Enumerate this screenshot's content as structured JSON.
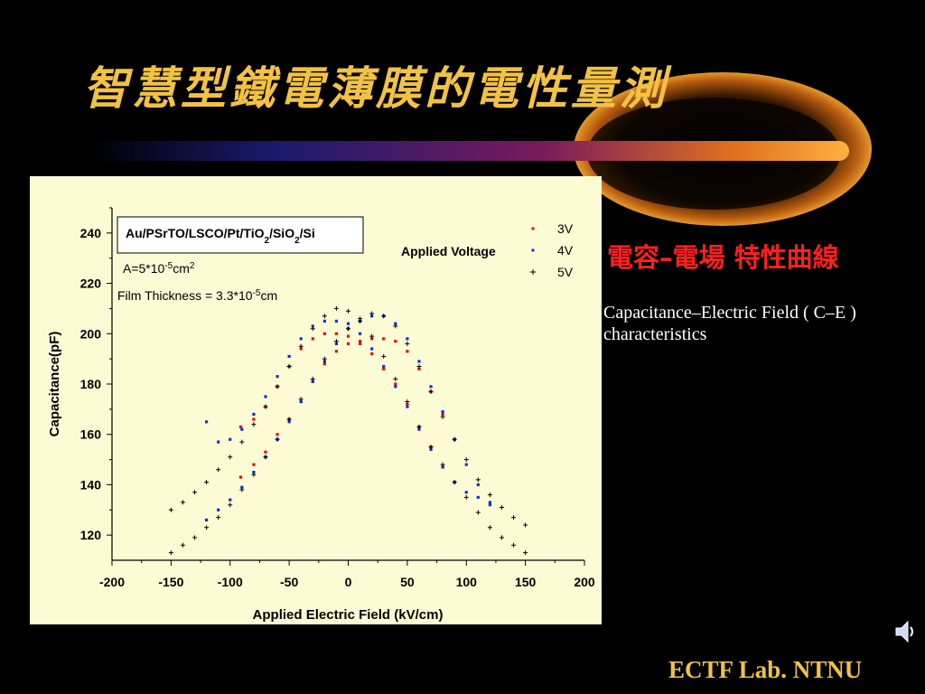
{
  "slide": {
    "title": "智慧型鐵電薄膜的電性量測",
    "subtitle_zh": "電容–電場 特性曲線",
    "subtitle_en_line1": "Capacitance–Electric Field ( C–E )",
    "subtitle_en_line2": "characteristics",
    "footer": "ECTF Lab. NTNU"
  },
  "colors": {
    "title": "#f2c244",
    "subtitle_zh": "#ff2020",
    "panel_bg": "#fdfbd4",
    "series_3v": "#e01010",
    "series_4v": "#1030e0",
    "series_5v": "#000000"
  },
  "chart_data": {
    "type": "scatter",
    "xlabel": "Applied Electric Field (kV/cm)",
    "ylabel": "Capacitance(pF)",
    "xlim": [
      -200,
      200
    ],
    "ylim": [
      110,
      250
    ],
    "x_ticks": [
      -200,
      -150,
      -100,
      -50,
      0,
      50,
      100,
      150,
      200
    ],
    "y_ticks": [
      120,
      140,
      160,
      180,
      200,
      220,
      240
    ],
    "grid": false,
    "legend_title": "Applied Voltage",
    "legend_position": "top-right",
    "annotations": {
      "sample": "Au/PSrTO/LSCO/Pt/TiO2/SiO2/Si",
      "area": "A=5*10-5cm2",
      "thickness": "Film Thickness = 3.3*10-5cm"
    },
    "series": [
      {
        "name": "3V",
        "marker": "square",
        "branches": [
          {
            "x": [
              -91,
              -80,
              -70,
              -60,
              -50,
              -40,
              -30,
              -20,
              -10,
              0,
              10,
              20,
              30,
              40,
              50,
              60,
              70,
              80,
              90
            ],
            "y": [
              163,
              166,
              171,
              179,
              187,
              194,
              198,
              200,
              200,
              199,
              196,
              192,
              186,
              180,
              172,
              163,
              155,
              147,
              141
            ]
          },
          {
            "x": [
              -91,
              -80,
              -70,
              -60,
              -50,
              -40,
              -30,
              -20,
              -10,
              0,
              10,
              20,
              30,
              40,
              50,
              60,
              70,
              80,
              90
            ],
            "y": [
              143,
              148,
              153,
              160,
              166,
              173,
              181,
              188,
              193,
              196,
              197,
              198,
              198,
              197,
              193,
              186,
              177,
              168,
              158
            ]
          }
        ]
      },
      {
        "name": "4V",
        "marker": "square",
        "branches": [
          {
            "x": [
              -120,
              -110,
              -100,
              -90,
              -80,
              -70,
              -60,
              -50,
              -40,
              -30,
              -20,
              -10,
              0,
              10,
              20,
              30,
              40,
              50,
              60,
              70,
              80,
              90,
              100,
              110,
              120
            ],
            "y": [
              165,
              157,
              158,
              162,
              168,
              175,
              183,
              191,
              198,
              203,
              205,
              205,
              204,
              200,
              194,
              187,
              179,
              171,
              162,
              154,
              147,
              141,
              137,
              135,
              133
            ]
          },
          {
            "x": [
              -120,
              -110,
              -100,
              -90,
              -80,
              -70,
              -60,
              -50,
              -40,
              -30,
              -20,
              -10,
              0,
              10,
              20,
              30,
              40,
              50,
              60,
              70,
              80,
              90,
              100,
              110,
              120
            ],
            "y": [
              126,
              130,
              134,
              139,
              145,
              151,
              158,
              165,
              173,
              181,
              189,
              196,
              202,
              205,
              207,
              207,
              204,
              198,
              189,
              179,
              169,
              158,
              148,
              140,
              132
            ]
          }
        ]
      },
      {
        "name": "5V",
        "marker": "plus",
        "branches": [
          {
            "x": [
              -150,
              -140,
              -130,
              -120,
              -110,
              -100,
              -90,
              -80,
              -70,
              -60,
              -50,
              -40,
              -30,
              -20,
              -10,
              0,
              10,
              20,
              30,
              40,
              50,
              60,
              70,
              80,
              90,
              100,
              110,
              120,
              130,
              140,
              150
            ],
            "y": [
              130,
              133,
              137,
              141,
              146,
              151,
              157,
              164,
              171,
              179,
              187,
              195,
              202,
              207,
              210,
              209,
              205,
              199,
              191,
              182,
              173,
              163,
              155,
              148,
              141,
              135,
              129,
              123,
              119,
              116,
              113
            ]
          },
          {
            "x": [
              -150,
              -140,
              -130,
              -120,
              -110,
              -100,
              -90,
              -80,
              -70,
              -60,
              -50,
              -40,
              -30,
              -20,
              -10,
              0,
              10,
              20,
              30,
              40,
              50,
              60,
              70,
              80,
              90,
              100,
              110,
              120,
              130,
              140,
              150
            ],
            "y": [
              113,
              116,
              119,
              123,
              127,
              132,
              138,
              144,
              151,
              158,
              166,
              174,
              182,
              190,
              197,
              202,
              206,
              208,
              207,
              203,
              196,
              187,
              177,
              167,
              158,
              150,
              142,
              136,
              131,
              127,
              124
            ]
          }
        ]
      }
    ]
  }
}
